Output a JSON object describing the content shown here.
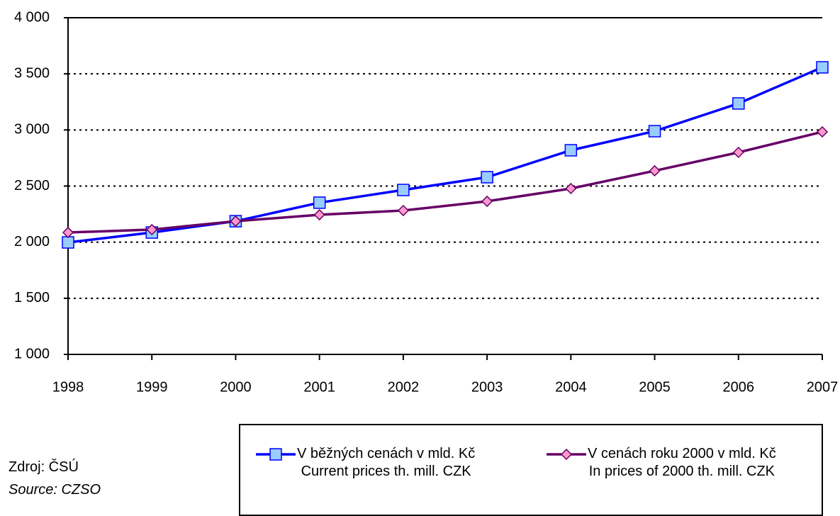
{
  "chart_data": {
    "type": "line",
    "x": [
      1998,
      1999,
      2000,
      2001,
      2002,
      2003,
      2004,
      2005,
      2006,
      2007
    ],
    "xlim": [
      1998,
      2007
    ],
    "xticks": [
      1998,
      1999,
      2000,
      2001,
      2002,
      2003,
      2004,
      2005,
      2006,
      2007
    ],
    "ylim": [
      1000,
      4000
    ],
    "yticks": [
      {
        "value": 1000,
        "label": "1 000"
      },
      {
        "value": 1500,
        "label": "1 500"
      },
      {
        "value": 2000,
        "label": "2 000"
      },
      {
        "value": 2500,
        "label": "2 500"
      },
      {
        "value": 3000,
        "label": "3 000"
      },
      {
        "value": 3500,
        "label": "3 500"
      },
      {
        "value": 4000,
        "label": "4 000"
      }
    ],
    "grid": true,
    "series": [
      {
        "name": "V běžných cenách v mld. Kč\nCurrent prices th. mill. CZK",
        "color": "#0000ff",
        "marker": "square",
        "marker_fill": "#99ccff",
        "values": [
          1998,
          2086,
          2187,
          2352,
          2465,
          2579,
          2819,
          2989,
          3236,
          3558
        ]
      },
      {
        "name": "V cenách roku 2000 v mld. Kč\nIn prices of 2000 th. mill. CZK",
        "color": "#660066",
        "marker": "diamond",
        "marker_fill": "#ff99cc",
        "values": [
          2086,
          2112,
          2187,
          2244,
          2282,
          2364,
          2478,
          2636,
          2800,
          2983
        ]
      }
    ],
    "source": [
      "Zdroj: ČSÚ",
      "Source: CZSO"
    ]
  }
}
